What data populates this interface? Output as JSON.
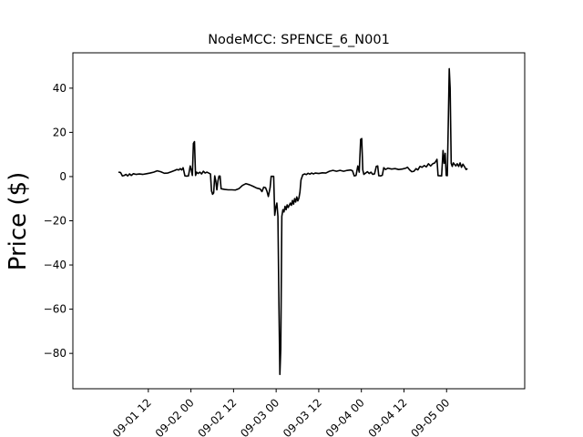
{
  "chart_data": {
    "type": "line",
    "title": "NodeMCC: SPENCE_6_N001",
    "xlabel": "",
    "ylabel": "Price ($)",
    "grid": false,
    "legend": "none",
    "line_color": "#000000",
    "x_unit": "hours from 09-01 00",
    "xlim": [
      -9.25,
      118.0
    ],
    "ylim": [
      -96.0,
      56.0
    ],
    "x_ticks": [
      {
        "x": 12,
        "label": "09-01 12"
      },
      {
        "x": 24,
        "label": "09-02 00"
      },
      {
        "x": 36,
        "label": "09-02 12"
      },
      {
        "x": 48,
        "label": "09-03 00"
      },
      {
        "x": 60,
        "label": "09-03 12"
      },
      {
        "x": 72,
        "label": "09-04 00"
      },
      {
        "x": 84,
        "label": "09-04 12"
      },
      {
        "x": 96,
        "label": "09-05 00"
      }
    ],
    "y_ticks": [
      {
        "y": 40,
        "label": "40"
      },
      {
        "y": 20,
        "label": "20"
      },
      {
        "y": 0,
        "label": "0"
      },
      {
        "y": -20,
        "label": "−20"
      },
      {
        "y": -40,
        "label": "−40"
      },
      {
        "y": -60,
        "label": "−60"
      },
      {
        "y": -80,
        "label": "−80"
      }
    ],
    "series": [
      {
        "points": [
          [
            3.6,
            2.0
          ],
          [
            4.2,
            1.8
          ],
          [
            4.7,
            0.3
          ],
          [
            5.2,
            0.5
          ],
          [
            5.7,
            1.0
          ],
          [
            6.2,
            0.3
          ],
          [
            6.7,
            1.2
          ],
          [
            7.2,
            0.5
          ],
          [
            7.8,
            1.3
          ],
          [
            8.5,
            1.0
          ],
          [
            9.5,
            1.2
          ],
          [
            10.5,
            1.0
          ],
          [
            11.5,
            1.3
          ],
          [
            12.5,
            1.6
          ],
          [
            13.5,
            2.0
          ],
          [
            14.5,
            2.6
          ],
          [
            15.5,
            2.2
          ],
          [
            16.5,
            1.5
          ],
          [
            17.5,
            1.6
          ],
          [
            18.5,
            2.2
          ],
          [
            19.5,
            2.8
          ],
          [
            20.0,
            3.2
          ],
          [
            20.6,
            3.0
          ],
          [
            21.0,
            3.6
          ],
          [
            21.4,
            3.0
          ],
          [
            21.8,
            4.0
          ],
          [
            22.3,
            0.3
          ],
          [
            22.8,
            0.2
          ],
          [
            23.3,
            0.3
          ],
          [
            23.8,
            4.8
          ],
          [
            24.1,
            3.0
          ],
          [
            24.4,
            0.5
          ],
          [
            24.7,
            15.0
          ],
          [
            25.0,
            15.8
          ],
          [
            25.3,
            0.5
          ],
          [
            25.6,
            2.0
          ],
          [
            26.0,
            1.4
          ],
          [
            26.5,
            2.0
          ],
          [
            27.0,
            1.2
          ],
          [
            27.5,
            2.4
          ],
          [
            28.0,
            1.6
          ],
          [
            28.5,
            2.0
          ],
          [
            29.0,
            1.6
          ],
          [
            29.5,
            1.2
          ],
          [
            29.8,
            -6.5
          ],
          [
            30.1,
            -8.0
          ],
          [
            30.4,
            -7.4
          ],
          [
            30.7,
            0.3
          ],
          [
            31.0,
            -2.0
          ],
          [
            31.3,
            -6.0
          ],
          [
            31.6,
            -2.0
          ],
          [
            31.9,
            0.2
          ],
          [
            32.2,
            0.2
          ],
          [
            32.5,
            -5.5
          ],
          [
            33.5,
            -5.8
          ],
          [
            34.5,
            -6.0
          ],
          [
            35.5,
            -6.0
          ],
          [
            36.5,
            -6.1
          ],
          [
            37.5,
            -5.5
          ],
          [
            38.5,
            -4.0
          ],
          [
            39.5,
            -3.2
          ],
          [
            40.5,
            -3.7
          ],
          [
            41.5,
            -4.4
          ],
          [
            42.5,
            -5.2
          ],
          [
            43.5,
            -5.6
          ],
          [
            44.0,
            -6.8
          ],
          [
            44.5,
            -4.8
          ],
          [
            45.0,
            -5.0
          ],
          [
            45.4,
            -6.6
          ],
          [
            45.8,
            -9.0
          ],
          [
            46.3,
            -5.0
          ],
          [
            46.6,
            0.1
          ],
          [
            47.3,
            0.1
          ],
          [
            47.6,
            -17.5
          ],
          [
            47.9,
            -14.0
          ],
          [
            48.2,
            -12.0
          ],
          [
            48.5,
            -18.0
          ],
          [
            48.8,
            -60.0
          ],
          [
            49.05,
            -89.5
          ],
          [
            49.3,
            -78.0
          ],
          [
            49.6,
            -18.0
          ],
          [
            49.9,
            -15.0
          ],
          [
            50.2,
            -16.0
          ],
          [
            50.5,
            -13.5
          ],
          [
            50.8,
            -15.0
          ],
          [
            51.1,
            -12.8
          ],
          [
            51.4,
            -14.0
          ],
          [
            51.7,
            -13.0
          ],
          [
            52.0,
            -12.0
          ],
          [
            52.3,
            -13.0
          ],
          [
            52.6,
            -10.8
          ],
          [
            52.9,
            -12.5
          ],
          [
            53.2,
            -10.0
          ],
          [
            53.5,
            -11.5
          ],
          [
            53.8,
            -9.2
          ],
          [
            54.1,
            -11.0
          ],
          [
            54.4,
            -9.8
          ],
          [
            54.7,
            -7.0
          ],
          [
            55.0,
            -1.5
          ],
          [
            55.5,
            0.8
          ],
          [
            56.0,
            1.2
          ],
          [
            56.5,
            0.9
          ],
          [
            57.0,
            1.5
          ],
          [
            57.5,
            1.1
          ],
          [
            58.0,
            1.6
          ],
          [
            58.5,
            1.2
          ],
          [
            59.0,
            1.6
          ],
          [
            60.0,
            1.4
          ],
          [
            61.0,
            1.7
          ],
          [
            62.0,
            1.6
          ],
          [
            63.0,
            2.4
          ],
          [
            64.0,
            2.8
          ],
          [
            65.0,
            2.4
          ],
          [
            66.0,
            2.8
          ],
          [
            67.0,
            2.4
          ],
          [
            68.0,
            2.8
          ],
          [
            69.0,
            3.0
          ],
          [
            69.5,
            2.6
          ],
          [
            70.0,
            0.3
          ],
          [
            70.5,
            0.5
          ],
          [
            71.0,
            4.8
          ],
          [
            71.4,
            2.0
          ],
          [
            71.8,
            16.8
          ],
          [
            72.1,
            17.2
          ],
          [
            72.4,
            3.0
          ],
          [
            72.7,
            1.0
          ],
          [
            73.2,
            1.6
          ],
          [
            73.7,
            2.2
          ],
          [
            74.2,
            1.4
          ],
          [
            74.7,
            2.0
          ],
          [
            75.2,
            1.0
          ],
          [
            75.7,
            1.2
          ],
          [
            76.2,
            4.6
          ],
          [
            76.6,
            4.8
          ],
          [
            76.9,
            0.4
          ],
          [
            77.4,
            0.3
          ],
          [
            77.9,
            0.6
          ],
          [
            78.3,
            4.0
          ],
          [
            78.8,
            3.2
          ],
          [
            79.5,
            3.8
          ],
          [
            80.5,
            3.4
          ],
          [
            81.5,
            3.6
          ],
          [
            82.5,
            3.2
          ],
          [
            83.5,
            3.4
          ],
          [
            84.5,
            3.8
          ],
          [
            85.0,
            4.2
          ],
          [
            85.6,
            3.0
          ],
          [
            86.2,
            2.2
          ],
          [
            86.8,
            2.4
          ],
          [
            87.4,
            3.6
          ],
          [
            87.9,
            3.0
          ],
          [
            88.5,
            4.6
          ],
          [
            89.1,
            4.2
          ],
          [
            89.7,
            5.0
          ],
          [
            90.3,
            4.4
          ],
          [
            90.9,
            5.8
          ],
          [
            91.5,
            4.8
          ],
          [
            92.1,
            5.8
          ],
          [
            92.7,
            6.2
          ],
          [
            93.3,
            7.8
          ],
          [
            93.6,
            0.4
          ],
          [
            94.6,
            0.3
          ],
          [
            95.0,
            11.8
          ],
          [
            95.3,
            6.0
          ],
          [
            95.6,
            10.5
          ],
          [
            95.9,
            0.5
          ],
          [
            96.2,
            0.4
          ],
          [
            96.5,
            26.0
          ],
          [
            96.75,
            48.8
          ],
          [
            97.0,
            40.0
          ],
          [
            97.3,
            6.0
          ],
          [
            97.6,
            4.6
          ],
          [
            97.9,
            6.2
          ],
          [
            98.2,
            5.6
          ],
          [
            98.6,
            4.8
          ],
          [
            99.0,
            5.8
          ],
          [
            99.4,
            4.6
          ],
          [
            99.8,
            6.2
          ],
          [
            100.2,
            4.2
          ],
          [
            100.6,
            5.6
          ],
          [
            101.0,
            4.6
          ],
          [
            101.5,
            3.2
          ],
          [
            101.9,
            3.6
          ]
        ]
      }
    ]
  }
}
